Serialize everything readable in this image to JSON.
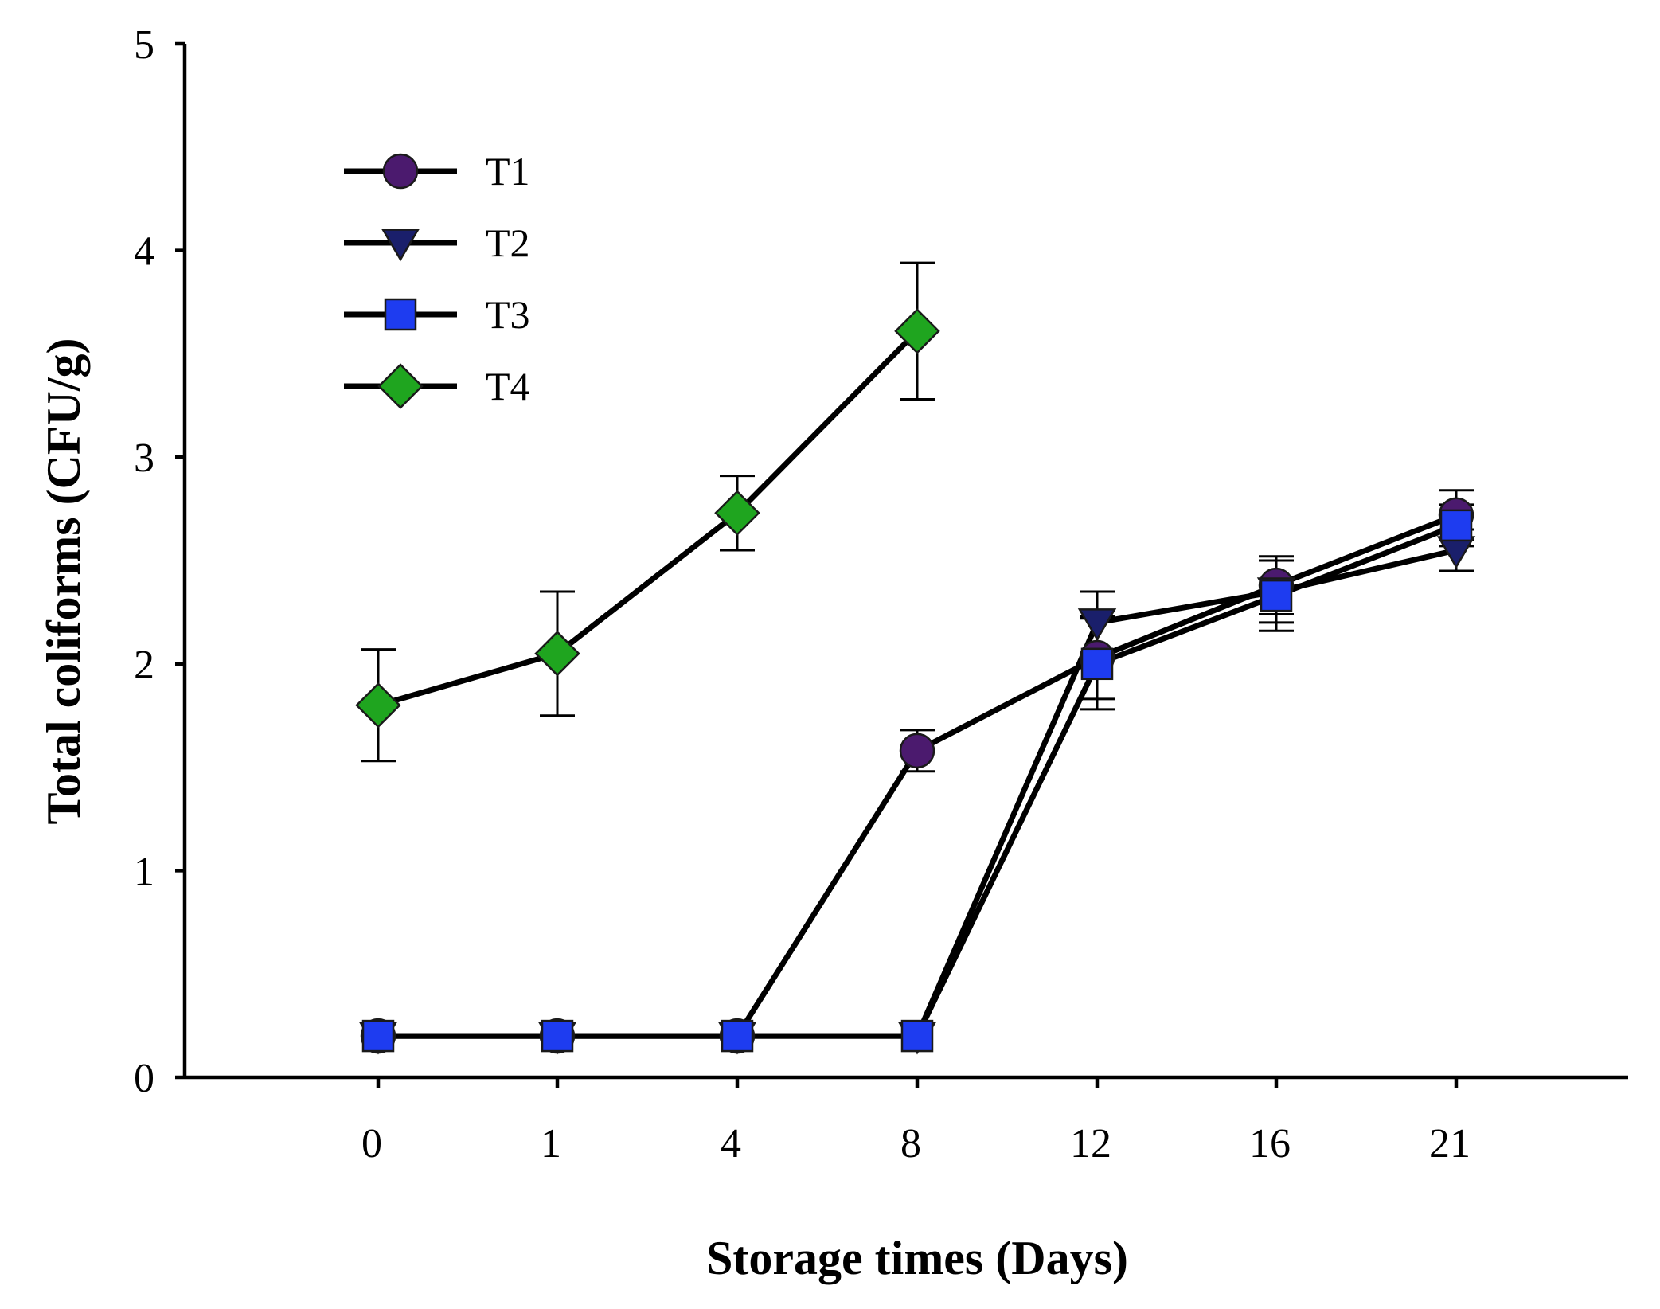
{
  "chart_data": {
    "type": "line",
    "title": "",
    "xlabel": "Storage times (Days)",
    "ylabel": "Total coliforms (CFU/g)",
    "categories": [
      "0",
      "1",
      "4",
      "8",
      "12",
      "16",
      "21"
    ],
    "ylim": [
      0,
      5
    ],
    "yticks": [
      "0",
      "1",
      "2",
      "3",
      "4",
      "5"
    ],
    "grid": false,
    "legend_position": "top-left",
    "series": [
      {
        "name": "T1",
        "marker": "circle",
        "color": "#4b1a6e",
        "values": [
          0.2,
          0.2,
          0.2,
          1.58,
          2.03,
          2.38,
          2.72
        ],
        "errors": [
          0,
          0,
          0,
          0.1,
          0.2,
          0.14,
          0.12
        ]
      },
      {
        "name": "T2",
        "marker": "triangle-down",
        "color": "#1a1f6b",
        "values": [
          0.2,
          0.2,
          0.2,
          0.2,
          2.2,
          2.35,
          2.55
        ],
        "errors": [
          0,
          0,
          0,
          0,
          0.15,
          0.15,
          0.1
        ]
      },
      {
        "name": "T3",
        "marker": "square",
        "color": "#1e3cf0",
        "values": [
          0.2,
          0.2,
          0.2,
          0.2,
          2.0,
          2.33,
          2.67
        ],
        "errors": [
          0,
          0,
          0,
          0,
          0.22,
          0.17,
          0.1
        ]
      },
      {
        "name": "T4",
        "marker": "diamond",
        "color": "#1fa51f",
        "values": [
          1.8,
          2.05,
          2.73,
          3.61,
          null,
          null,
          null
        ],
        "errors": [
          0.27,
          0.3,
          0.18,
          0.33,
          null,
          null,
          null
        ]
      }
    ]
  }
}
